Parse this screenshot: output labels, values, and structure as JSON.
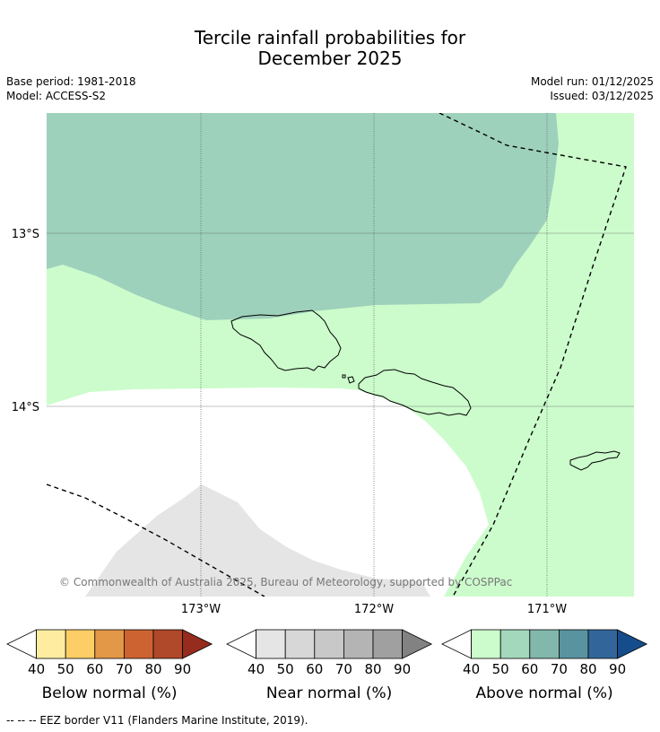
{
  "title": {
    "line1": "Tercile rainfall probabilities for",
    "line2": "December 2025"
  },
  "meta": {
    "base_period": "Base period: 1981-2018",
    "model": "Model: ACCESS-S2",
    "model_run": "Model run: 01/12/2025",
    "issued": "Issued: 03/12/2025"
  },
  "map": {
    "lat_labels": [
      "13°S",
      "14°S"
    ],
    "lon_labels": [
      "173°W",
      "172°W",
      "171°W"
    ],
    "copyright": "© Commonwealth of Australia 2025, Bureau of Meteorology, supported by COSPPac",
    "colors": {
      "above_60": "#9ed1bc",
      "above_50": "#ccfccc",
      "near_50": "#e5e5e5",
      "gridline": "#666666"
    }
  },
  "legends": [
    {
      "label": "Below normal (%)",
      "ticks": [
        "40",
        "50",
        "60",
        "70",
        "80",
        "90"
      ],
      "colors": [
        "#ffffff",
        "#feeda0",
        "#fece66",
        "#e29847",
        "#cd6331",
        "#b0482a",
        "#962c1e"
      ]
    },
    {
      "label": "Near normal (%)",
      "ticks": [
        "40",
        "50",
        "60",
        "70",
        "80",
        "90"
      ],
      "colors": [
        "#ffffff",
        "#e5e5e5",
        "#d7d7d7",
        "#c8c8c8",
        "#b4b4b4",
        "#a0a0a0",
        "#828282"
      ]
    },
    {
      "label": "Above normal (%)",
      "ticks": [
        "40",
        "50",
        "60",
        "70",
        "80",
        "90"
      ],
      "colors": [
        "#ffffff",
        "#ccfccc",
        "#a4d8bc",
        "#82b7ab",
        "#5a93a0",
        "#32669a",
        "#154d8c"
      ]
    }
  ],
  "footer": "--  --  -- EEZ border V11 (Flanders Marine Institute, 2019)."
}
